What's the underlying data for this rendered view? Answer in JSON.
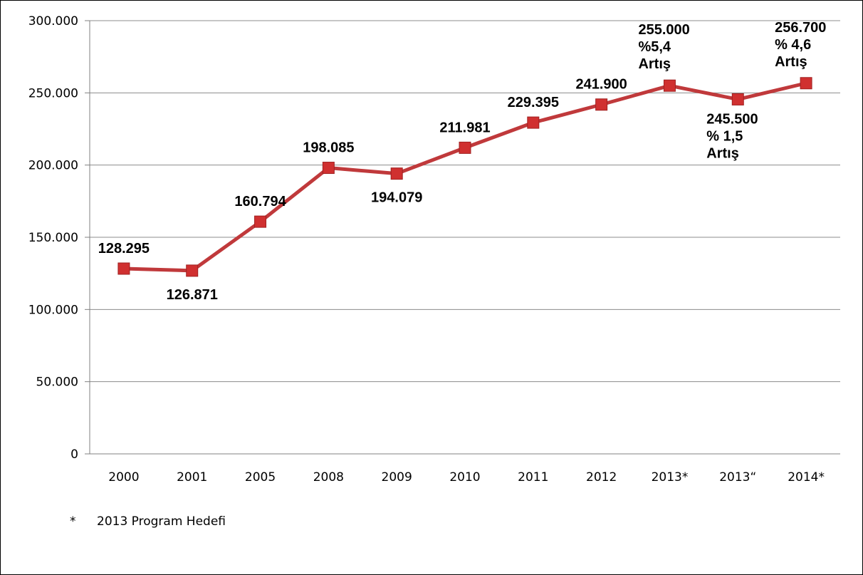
{
  "chart_data": {
    "type": "line",
    "categories": [
      "2000",
      "2001",
      "2005",
      "2008",
      "2009",
      "2010",
      "2011",
      "2012",
      "2013*",
      "2013“",
      "2014*"
    ],
    "series": [
      {
        "values": [
          128295,
          126871,
          160794,
          198085,
          194079,
          211981,
          229395,
          241900,
          255000,
          245500,
          256700
        ]
      }
    ],
    "data_labels": [
      [
        "128.295"
      ],
      [
        "126.871"
      ],
      [
        "160.794"
      ],
      [
        "198.085"
      ],
      [
        "194.079"
      ],
      [
        "211.981"
      ],
      [
        "229.395"
      ],
      [
        "241.900"
      ],
      [
        "255.000",
        "%5,4",
        "Artış"
      ],
      [
        "245.500",
        "% 1,5",
        "Artış"
      ],
      [
        "256.700",
        "% 4,6",
        "Artış"
      ]
    ],
    "y_ticks": [
      "0",
      "50.000",
      "100.000",
      "150.000",
      "200.000",
      "250.000",
      "300.000"
    ],
    "ylim": [
      0,
      300000
    ],
    "grid": true,
    "line_color": "#c0393b",
    "marker_color": "#d03030",
    "title": "",
    "xlabel": "",
    "ylabel": ""
  },
  "footnote": {
    "marker": "*",
    "text": "2013 Program Hedefi"
  }
}
